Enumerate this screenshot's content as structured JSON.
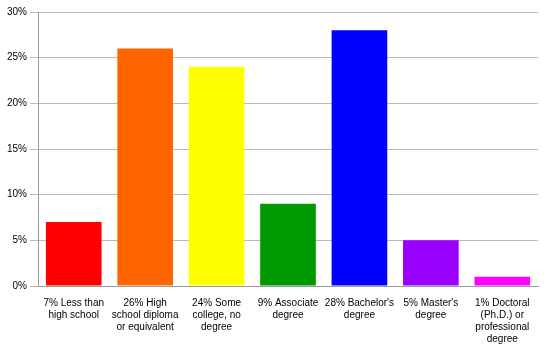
{
  "chart_data": {
    "type": "bar",
    "categories": [
      "7% Less than high school",
      "26% High school diploma or equivalent",
      "24% Some college, no degree",
      "9% Associate degree",
      "28% Bachelor's degree",
      "5% Master's degree",
      "1% Doctoral (Ph.D.) or professional degree"
    ],
    "values": [
      7,
      26,
      24,
      9,
      28,
      5,
      1
    ],
    "colors": [
      "#ff0000",
      "#ff6600",
      "#ffff00",
      "#009900",
      "#0000ff",
      "#9900ff",
      "#ff00ff"
    ],
    "ylim": [
      0,
      30
    ],
    "yticks": [
      {
        "value": 0,
        "label": "0%"
      },
      {
        "value": 5,
        "label": "5%"
      },
      {
        "value": 10,
        "label": "10%"
      },
      {
        "value": 15,
        "label": "15%"
      },
      {
        "value": 20,
        "label": "20%"
      },
      {
        "value": 25,
        "label": "25%"
      },
      {
        "value": 30,
        "label": "30%"
      }
    ],
    "grid": true
  }
}
